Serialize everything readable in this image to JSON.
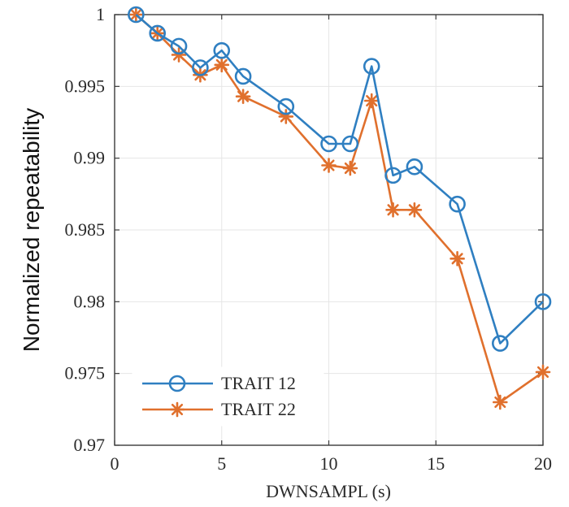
{
  "chart_data": {
    "type": "line",
    "xlabel": "DWNSAMPL (s)",
    "ylabel": "Normalized repeatability",
    "xlim": [
      0,
      20
    ],
    "ylim": [
      0.97,
      1.0
    ],
    "xticks": [
      0,
      5,
      10,
      15,
      20
    ],
    "xtick_labels": [
      "0",
      "5",
      "10",
      "15",
      "20"
    ],
    "yticks": [
      0.97,
      0.975,
      0.98,
      0.985,
      0.99,
      0.995,
      1.0
    ],
    "ytick_labels": [
      "0.97",
      "0.975",
      "0.98",
      "0.985",
      "0.99",
      "0.995",
      "1"
    ],
    "grid": true,
    "legend_position": "bottom-left",
    "series": [
      {
        "name": "TRAIT 12",
        "color": "#2f7fc1",
        "marker": "circle",
        "x": [
          1,
          2,
          3,
          4,
          5,
          6,
          8,
          10,
          11,
          12,
          13,
          14,
          16,
          18,
          20
        ],
        "y": [
          1.0,
          0.9987,
          0.9978,
          0.9963,
          0.9975,
          0.9957,
          0.9936,
          0.991,
          0.991,
          0.9964,
          0.9888,
          0.9894,
          0.9868,
          0.9771,
          0.98
        ]
      },
      {
        "name": "TRAIT 22",
        "color": "#e0702d",
        "marker": "asterisk",
        "x": [
          1,
          2,
          3,
          4,
          5,
          6,
          8,
          10,
          11,
          12,
          13,
          14,
          16,
          18,
          20
        ],
        "y": [
          1.0,
          0.9987,
          0.9972,
          0.9958,
          0.9965,
          0.9943,
          0.9929,
          0.9895,
          0.9893,
          0.994,
          0.9864,
          0.9864,
          0.983,
          0.973,
          0.9751
        ]
      }
    ]
  }
}
